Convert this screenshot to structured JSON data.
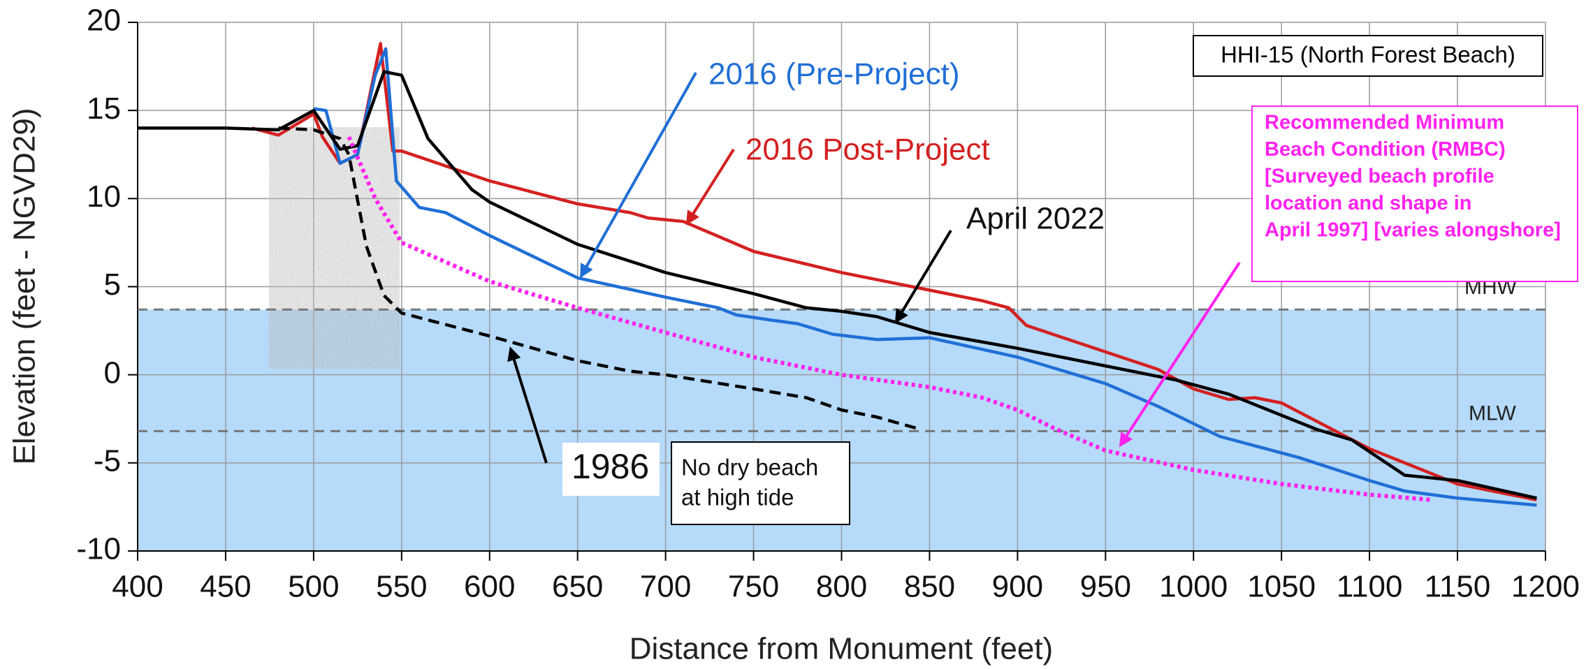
{
  "chart_data": {
    "type": "line",
    "title": "HHI-15 (North Forest Beach)",
    "x_label": "Distance from Monument (feet)",
    "y_label": "Elevation (feet - NGVD29)",
    "xlim": [
      400,
      1200
    ],
    "xticks": [
      400,
      450,
      500,
      550,
      600,
      650,
      700,
      750,
      800,
      850,
      900,
      950,
      1000,
      1050,
      1100,
      1150,
      1200
    ],
    "ylim": [
      -10,
      20
    ],
    "yticks": [
      -10,
      -5,
      0,
      5,
      10,
      15,
      20
    ],
    "grid": true,
    "reference_lines": [
      {
        "name": "MHW",
        "value": 3.7
      },
      {
        "name": "MLW",
        "value": -3.2
      }
    ],
    "series": [
      {
        "name": "2016 Post-Project",
        "color": "#d42020",
        "style": "solid",
        "x": [
          465,
          480,
          500,
          505,
          515,
          525,
          538,
          545,
          550,
          600,
          650,
          680,
          690,
          710,
          750,
          800,
          850,
          880,
          895,
          905,
          950,
          980,
          1000,
          1020,
          1035,
          1050,
          1100,
          1150,
          1195
        ],
        "values": [
          14,
          13.6,
          14.8,
          13.5,
          12,
          12.5,
          18.8,
          12.7,
          12.7,
          11,
          9.7,
          9.2,
          8.9,
          8.7,
          7,
          5.8,
          4.8,
          4.2,
          3.8,
          2.8,
          1.3,
          0.3,
          -0.8,
          -1.4,
          -1.3,
          -1.6,
          -4.2,
          -6.2,
          -7.1
        ]
      },
      {
        "name": "2016 (Pre-Project)",
        "color": "#1f6fd6",
        "style": "solid",
        "x": [
          500,
          507,
          515,
          525,
          535,
          541,
          547,
          560,
          575,
          600,
          650,
          700,
          730,
          740,
          760,
          775,
          795,
          820,
          850,
          900,
          950,
          980,
          1015,
          1060,
          1100,
          1120,
          1150,
          1195
        ],
        "values": [
          15.1,
          15,
          12,
          12.5,
          17,
          18.5,
          11,
          9.5,
          9.2,
          7.9,
          5.5,
          4.4,
          3.8,
          3.4,
          3.1,
          2.9,
          2.3,
          2,
          2.1,
          1,
          -0.5,
          -1.8,
          -3.5,
          -4.7,
          -6,
          -6.6,
          -7,
          -7.4
        ]
      },
      {
        "name": "April 2022",
        "color": "#000000",
        "style": "solid",
        "x": [
          400,
          450,
          480,
          500,
          515,
          525,
          540,
          550,
          555,
          565,
          590,
          600,
          650,
          700,
          750,
          780,
          800,
          820,
          850,
          900,
          950,
          990,
          1020,
          1070,
          1090,
          1120,
          1150,
          1195
        ],
        "values": [
          14,
          14,
          13.9,
          15,
          12.8,
          13,
          17.2,
          17,
          15.8,
          13.4,
          10.5,
          9.8,
          7.4,
          5.8,
          4.6,
          3.8,
          3.6,
          3.3,
          2.4,
          1.5,
          0.5,
          -0.3,
          -1.1,
          -3.1,
          -3.7,
          -5.7,
          -6,
          -7
        ]
      },
      {
        "name": "1986",
        "color": "#000000",
        "style": "dashed",
        "x": [
          480,
          500,
          515,
          520,
          530,
          540,
          550,
          600,
          650,
          680,
          700,
          750,
          780,
          800,
          820,
          845
        ],
        "values": [
          14,
          13.9,
          13.4,
          12.5,
          7.3,
          4.5,
          3.5,
          2.2,
          0.8,
          0.2,
          0,
          -0.8,
          -1.3,
          -2,
          -2.4,
          -3.1
        ]
      },
      {
        "name": [
          "Recommended Minimum",
          "Beach Condition (RMBC)",
          "[Surveyed beach profile",
          "location and shape in",
          "April 1997] [varies alongshore]"
        ],
        "color": "#ff22ee",
        "style": "dotted",
        "x": [
          520,
          535,
          550,
          600,
          650,
          700,
          750,
          800,
          850,
          880,
          900,
          920,
          950,
          1000,
          1050,
          1100,
          1135
        ],
        "values": [
          13.5,
          10,
          7.5,
          5.3,
          3.8,
          2.4,
          1,
          0,
          -0.7,
          -1.3,
          -2,
          -3,
          -4.3,
          -5.4,
          -6.2,
          -6.8,
          -7.1
        ]
      }
    ],
    "annotations": [
      [
        "No dry beach",
        "at high tide"
      ]
    ]
  }
}
